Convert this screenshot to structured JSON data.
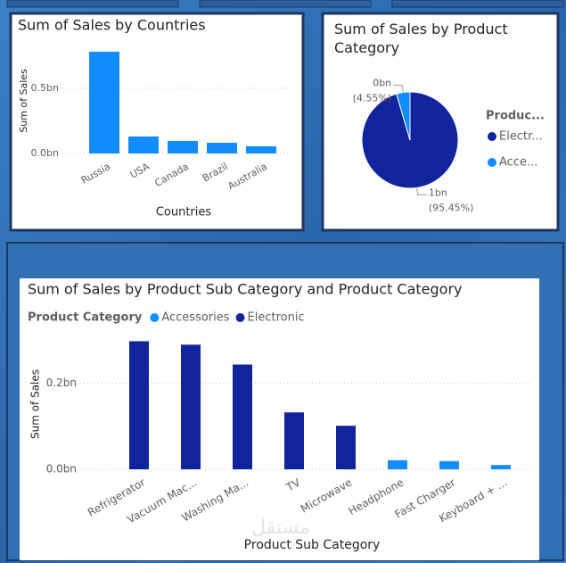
{
  "chart_data": [
    {
      "type": "bar",
      "title": "Sum of Sales by Countries",
      "x_label": "Countries",
      "y_label": "Sum of Sales",
      "categories": [
        "Russia",
        "USA",
        "Canada",
        "Brazil",
        "Australia"
      ],
      "series": [
        {
          "name": null,
          "color": "#118dff",
          "values": [
            0.78,
            0.13,
            0.096,
            0.082,
            0.055
          ]
        }
      ],
      "ylim": [
        0,
        0.8
      ],
      "yticks": [
        {
          "value": 0,
          "label": "0.0bn"
        },
        {
          "value": 0.5,
          "label": "0.5bn"
        }
      ],
      "grid": true
    },
    {
      "type": "pie",
      "title": "Sum of Sales by Product Category",
      "legend_title": "Produc...",
      "categories": [
        "Electr...",
        "Acce..."
      ],
      "colors": [
        "#12239e",
        "#118dff"
      ],
      "values": [
        95.45,
        4.55
      ],
      "value_labels": [
        "(95.45%)",
        "(4.55%)"
      ],
      "amount_labels": [
        "1bn",
        "0bn"
      ]
    },
    {
      "type": "bar",
      "title": "Sum of Sales by Product Sub Category and Product Category",
      "x_label": "Product Sub Category",
      "y_label": "Sum of Sales",
      "legend_title": "Product Category",
      "categories": [
        "Refrigerator",
        "Vacuum Mac...",
        "Washing Ma...",
        "TV",
        "Microwave",
        "Headphone",
        "Fast Charger",
        "Keyboard + ..."
      ],
      "series": [
        {
          "name": "Accessories",
          "color": "#118dff",
          "values": [
            null,
            null,
            null,
            null,
            null,
            0.021,
            0.019,
            0.01
          ]
        },
        {
          "name": "Electronic",
          "color": "#12239e",
          "values": [
            0.297,
            0.289,
            0.243,
            0.132,
            0.101,
            null,
            null,
            null
          ]
        }
      ],
      "ylim": [
        0,
        0.3
      ],
      "yticks": [
        {
          "value": 0,
          "label": "0.0bn"
        },
        {
          "value": 0.2,
          "label": "0.2bn"
        }
      ],
      "grid": true
    }
  ],
  "watermark": "مستقل"
}
